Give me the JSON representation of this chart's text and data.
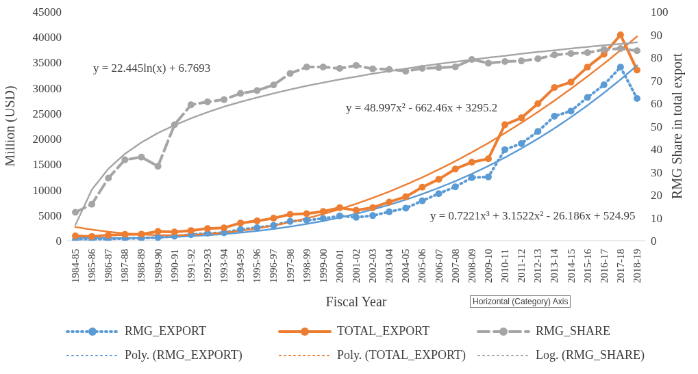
{
  "chart_data": {
    "type": "line",
    "xlabel": "Fiscal Year",
    "ylabel": "Million (USD)",
    "y2label": "RMG Share in total export",
    "categories": [
      "1984-85",
      "1985-86",
      "1986-87",
      "1987-88",
      "1988-89",
      "1989-90",
      "1990-91",
      "1991-92",
      "1992-93",
      "1993-94",
      "1994-95",
      "1995-96",
      "1996-97",
      "1997-98",
      "1998-99",
      "1999-00",
      "2000-01",
      "2001-02",
      "2002-03",
      "2003-04",
      "2004-05",
      "2005-06",
      "2006-07",
      "2007-08",
      "2008-09",
      "2009-10",
      "2010-11",
      "2011-12",
      "2012-13",
      "2013-14",
      "2014-15",
      "2015-16",
      "2016-17",
      "2017-18",
      "2018-19"
    ],
    "series": [
      {
        "name": "RMG_EXPORT",
        "color": "#5b9bd5",
        "line_style": "dotted",
        "values": [
          116,
          131,
          299,
          434,
          471,
          624,
          867,
          1183,
          1445,
          1556,
          2228,
          2547,
          3001,
          3782,
          4020,
          4349,
          4860,
          4584,
          4920,
          5680,
          6390,
          7830,
          9250,
          10590,
          12390,
          12520,
          17880,
          19090,
          21450,
          24450,
          25470,
          28150,
          30620,
          34100,
          27940
        ]
      },
      {
        "name": "TOTAL_EXPORT",
        "color": "#ed7d31",
        "line_style": "solid",
        "values": [
          934,
          819,
          1074,
          1231,
          1291,
          1820,
          1718,
          1994,
          2383,
          2534,
          3473,
          3882,
          4418,
          5162,
          5313,
          5752,
          6467,
          5986,
          6490,
          7600,
          8630,
          10510,
          12070,
          14080,
          15420,
          16090,
          22790,
          24130,
          26940,
          30080,
          31150,
          34100,
          36650,
          40440,
          33510
        ]
      },
      {
        "name": "RMG_SHARE",
        "color": "#a5a5a5",
        "line_style": "dashed",
        "axis": "y2",
        "values": [
          12.4,
          15.9,
          27.3,
          35.3,
          36.5,
          32.5,
          50.6,
          59.3,
          60.6,
          61.6,
          64.3,
          65.5,
          68.0,
          73.0,
          75.8,
          75.8,
          75.2,
          76.5,
          75.0,
          74.8,
          74.0,
          75.2,
          75.5,
          75.9,
          79.1,
          77.5,
          78.2,
          78.5,
          79.4,
          81.1,
          81.7,
          82.1,
          83.4,
          83.9,
          82.9
        ]
      },
      {
        "name": "Poly. (RMG_EXPORT)",
        "color": "#5b9bd5",
        "line_style": "dotted",
        "marker": "none",
        "values": [
          500,
          490,
          490,
          520,
          560,
          640,
          740,
          890,
          1070,
          1300,
          1580,
          1910,
          2300,
          2760,
          3280,
          3870,
          4540,
          5290,
          6120,
          7040,
          8050,
          9160,
          10380,
          11690,
          13120,
          14670,
          16330,
          18120,
          20030,
          22070,
          24260,
          26580,
          29040,
          31660,
          34430
        ]
      },
      {
        "name": "Poly. (TOTAL_EXPORT)",
        "color": "#ed7d31",
        "line_style": "dotted",
        "marker": "none",
        "values": [
          2680,
          2170,
          1750,
          1430,
          1210,
          1080,
          1060,
          1130,
          1300,
          1570,
          1940,
          2400,
          2960,
          3620,
          4380,
          5240,
          6190,
          7250,
          8400,
          9640,
          10990,
          12440,
          13980,
          15620,
          17360,
          19190,
          21130,
          23160,
          25290,
          27520,
          29850,
          32270,
          34790,
          37410,
          40130
        ]
      },
      {
        "name": "Log. (RMG_SHARE)",
        "color": "#a5a5a5",
        "line_style": "dotted",
        "marker": "none",
        "axis": "y2",
        "values": [
          6.8,
          22.3,
          31.4,
          37.9,
          42.9,
          47.0,
          50.4,
          53.4,
          56.1,
          58.5,
          60.6,
          62.5,
          64.3,
          66.0,
          67.6,
          69.0,
          70.4,
          71.6,
          72.9,
          74.0,
          75.1,
          76.2,
          77.2,
          78.1,
          79.0,
          79.9,
          80.7,
          81.6,
          82.4,
          83.1,
          83.9,
          84.6,
          85.3,
          85.9,
          86.6
        ]
      }
    ],
    "ylim": [
      0,
      45000
    ],
    "yticks": [
      0,
      5000,
      10000,
      15000,
      20000,
      25000,
      30000,
      35000,
      40000,
      45000
    ],
    "y2lim": [
      0,
      100
    ],
    "y2ticks": [
      0,
      10,
      20,
      30,
      40,
      50,
      60,
      70,
      80,
      90,
      100
    ],
    "marker": "circle",
    "grid": false,
    "legend": "bottom",
    "annotations": [
      "y = 22.445ln(x) + 6.7693",
      "y = 48.997x² - 662.46x + 3295.2",
      "y = 0.7221x³ + 3.1522x² - 26.186x + 524.95",
      "Horizontal (Category) Axis"
    ]
  }
}
